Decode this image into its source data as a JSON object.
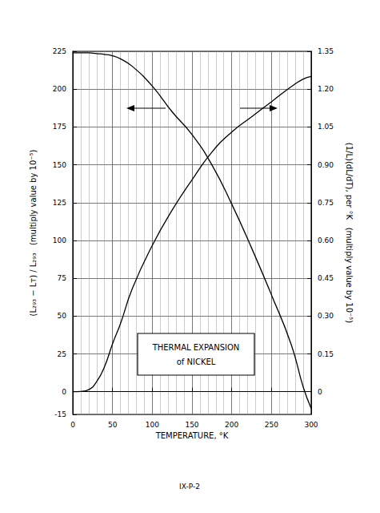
{
  "chart_data": {
    "type": "line",
    "title": "THERMAL EXPANSION\nof NICKEL",
    "footer": "IX-P-2",
    "x_label": "TEMPERATURE, °K",
    "y_label": "(L₂₉₃ − Lᴛ) / L₂₉₃   (multiply value by 10⁻⁵)",
    "y2_label": "(1/L)(dL/dT), per °K   (multiply value by 10⁻⁵)",
    "x": [
      0,
      10,
      20,
      30,
      40,
      50,
      60,
      75,
      100,
      125,
      150,
      175,
      200,
      225,
      250,
      275,
      290,
      300
    ],
    "series": [
      {
        "color": "#000000",
        "axis": "y",
        "values": [
          224,
          224,
          224,
          223.5,
          223,
          222,
          220,
          215,
          202,
          185,
          170,
          150,
          124,
          95,
          64,
          31,
          3,
          -11
        ]
      },
      {
        "color": "#000000",
        "axis": "y2",
        "values": [
          0,
          0.001,
          0.008,
          0.04,
          0.1,
          0.19,
          0.27,
          0.41,
          0.58,
          0.72,
          0.84,
          0.95,
          1.03,
          1.09,
          1.15,
          1.21,
          1.24,
          1.25
        ]
      }
    ],
    "xlim": [
      0,
      300
    ],
    "xticks": [
      0,
      50,
      100,
      150,
      200,
      250,
      300
    ],
    "ylim": [
      -15,
      225
    ],
    "yticks": [
      -15,
      0,
      25,
      50,
      75,
      100,
      125,
      150,
      175,
      200,
      225
    ],
    "y2lim": [
      -0.09,
      1.35
    ],
    "y2ticks": [
      0,
      0.15,
      {
        "value": 0.3,
        "label": "0.30"
      },
      0.45,
      {
        "value": 0.6,
        "label": "0.60"
      },
      0.75,
      {
        "value": 0.9,
        "label": "0.90"
      },
      1.05,
      {
        "value": 1.2,
        "label": "1.20"
      },
      1.35
    ],
    "grid": true
  }
}
